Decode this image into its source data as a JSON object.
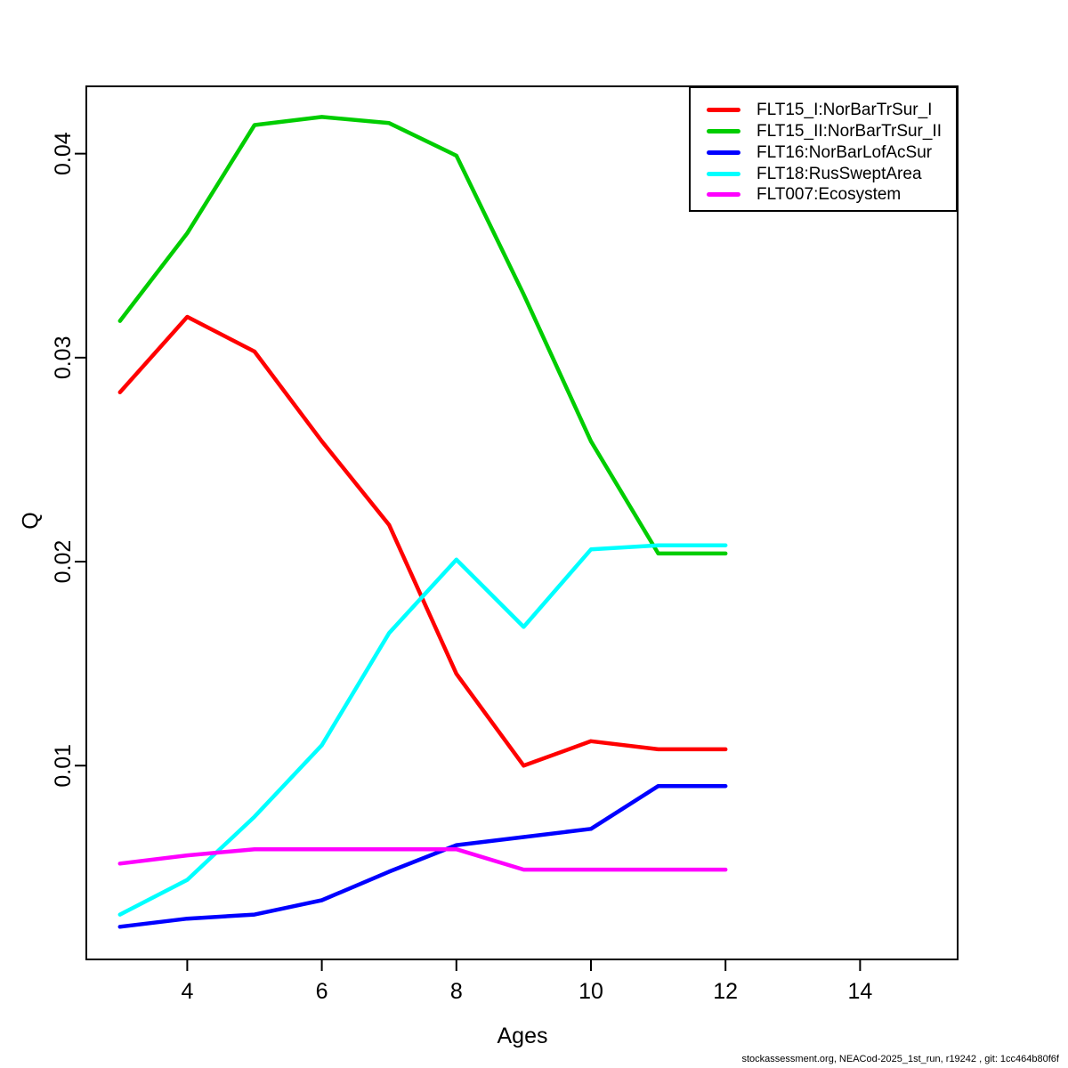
{
  "page": {
    "background": "#ffffff"
  },
  "footer": {
    "text": "stockassessment.org, NEACod-2025_1st_run, r19242 , git: 1cc464b80f6f"
  },
  "chart_data": {
    "type": "line",
    "title": "",
    "xlabel": "Ages",
    "ylabel": "Q",
    "grid": false,
    "legend_position": "topright",
    "xlim": [
      2.5,
      15.45
    ],
    "ylim": [
      0.0005,
      0.0433
    ],
    "x": [
      3,
      4,
      5,
      6,
      7,
      8,
      9,
      10,
      11,
      12
    ],
    "x_axis_ticks": [
      4,
      6,
      8,
      10,
      12,
      14
    ],
    "y_axis_ticks": [
      "0.01",
      "0.02",
      "0.03",
      "0.04"
    ],
    "series": [
      {
        "name": "FLT15_I:NorBarTrSur_I",
        "color": "#FF0000",
        "values": [
          0.0283,
          0.032,
          0.0303,
          0.0259,
          0.0218,
          0.0145,
          0.01,
          0.0112,
          0.0108,
          0.0108
        ]
      },
      {
        "name": "FLT15_II:NorBarTrSur_II",
        "color": "#00CD00",
        "values": [
          0.0318,
          0.0361,
          0.0414,
          0.0418,
          0.0415,
          0.0399,
          0.0331,
          0.0259,
          0.0204,
          0.0204
        ]
      },
      {
        "name": "FLT16:NorBarLofAcSur",
        "color": "#0000FF",
        "values": [
          0.0021,
          0.0025,
          0.0027,
          0.0034,
          0.0048,
          0.0061,
          0.0065,
          0.0069,
          0.009,
          0.009
        ]
      },
      {
        "name": "FLT18:RusSweptArea",
        "color": "#00FFFF",
        "values": [
          0.0027,
          0.0044,
          0.0075,
          0.011,
          0.0165,
          0.0201,
          0.0168,
          0.0206,
          0.0208,
          0.0208
        ]
      },
      {
        "name": "FLT007:Ecosystem",
        "color": "#FF00FF",
        "values": [
          0.0052,
          0.0056,
          0.0059,
          0.0059,
          0.0059,
          0.0059,
          0.0049,
          0.0049,
          0.0049,
          0.0049
        ]
      }
    ]
  }
}
